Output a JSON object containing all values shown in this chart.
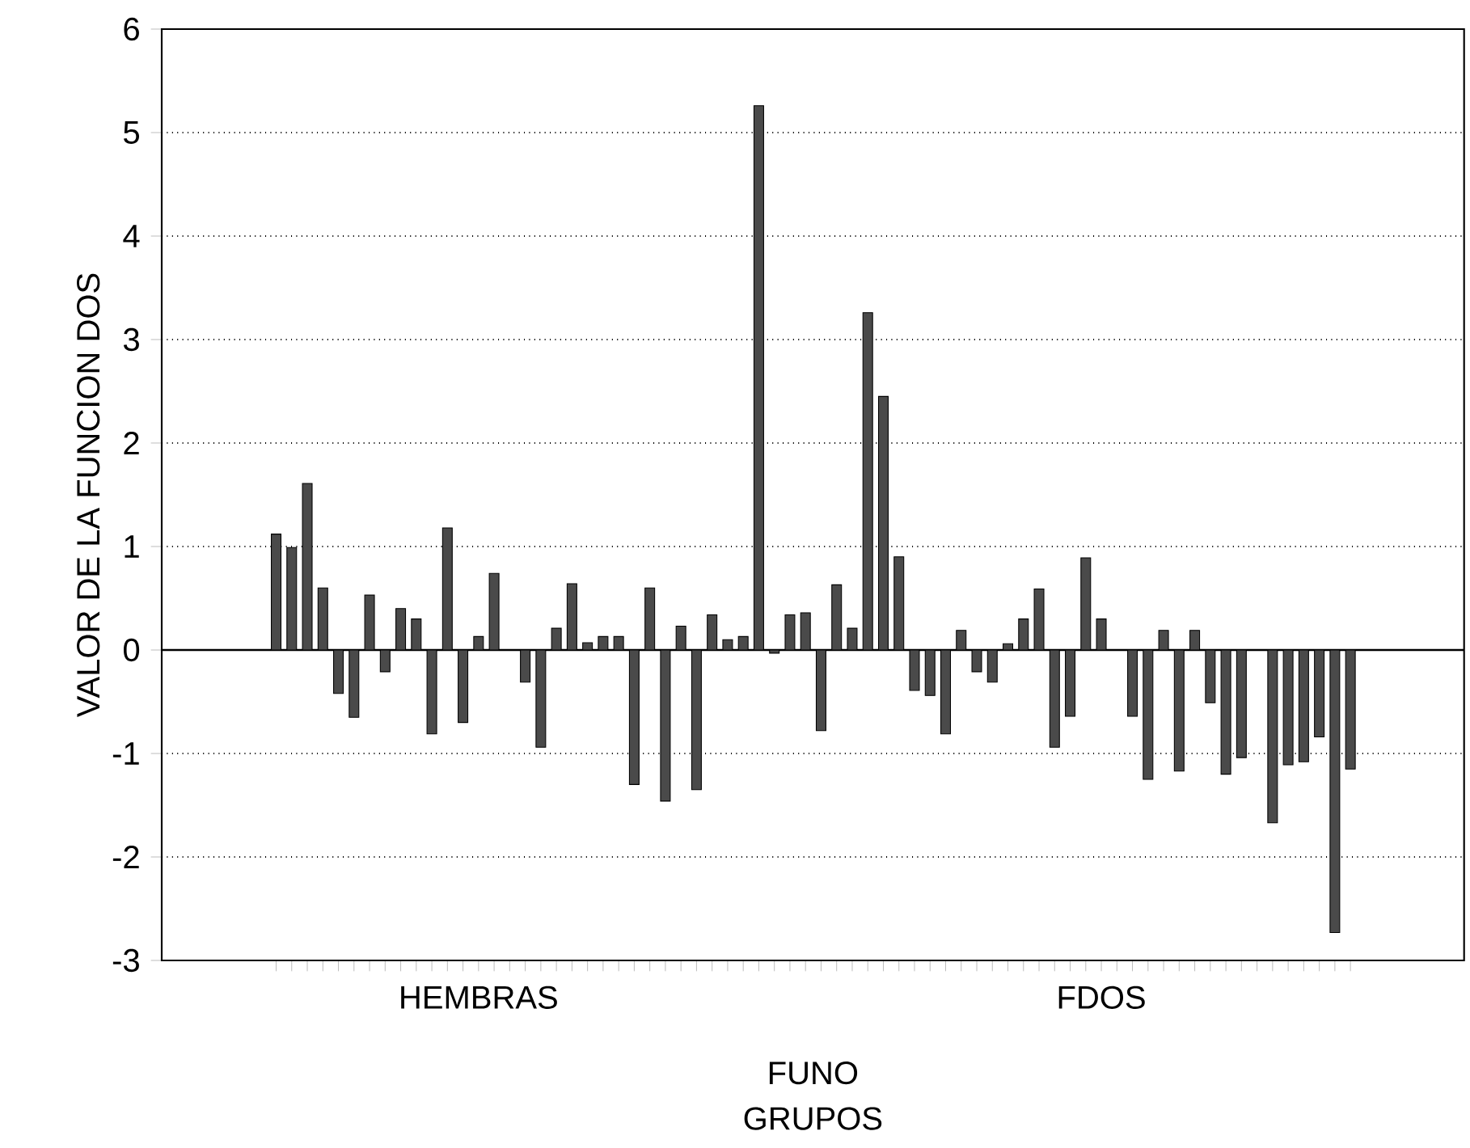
{
  "chart_data": {
    "type": "bar",
    "ylabel": "VALOR DE LA FUNCION DOS",
    "xlabel": "GRUPOS",
    "annotations": [
      "FUNO"
    ],
    "categories": [
      null,
      null,
      null,
      null,
      null,
      null,
      null,
      null,
      null,
      null,
      null,
      null,
      null,
      "HEMBRAS",
      null,
      null,
      null,
      null,
      null,
      null,
      null,
      null,
      null,
      null,
      null,
      null,
      null,
      null,
      null,
      null,
      null,
      null,
      null,
      null,
      null,
      null,
      null,
      null,
      null,
      null,
      null,
      null,
      null,
      null,
      null,
      null,
      null,
      null,
      null,
      null,
      null,
      null,
      null,
      "FDOS",
      null,
      null,
      null,
      null,
      null,
      null,
      null,
      null,
      null,
      null,
      null,
      null,
      null,
      null,
      null,
      null
    ],
    "values": [
      1.12,
      0.99,
      1.61,
      0.6,
      -0.42,
      -0.65,
      0.53,
      -0.21,
      0.4,
      0.3,
      -0.81,
      1.18,
      -0.7,
      0.13,
      0.74,
      null,
      -0.31,
      -0.94,
      0.21,
      0.64,
      0.07,
      0.13,
      0.13,
      -1.3,
      0.6,
      -1.46,
      0.23,
      -1.35,
      0.34,
      0.1,
      0.13,
      5.26,
      -0.03,
      0.34,
      0.36,
      -0.78,
      0.63,
      0.21,
      3.26,
      2.45,
      0.9,
      -0.39,
      -0.44,
      -0.81,
      0.19,
      -0.21,
      -0.31,
      0.06,
      0.3,
      0.59,
      -0.94,
      -0.64,
      0.89,
      0.3,
      null,
      -0.64,
      -1.25,
      0.19,
      -1.17,
      0.19,
      -0.51,
      -1.2,
      -1.04,
      null,
      -1.67,
      -1.11,
      -1.08,
      -0.84,
      -2.73,
      -1.15
    ],
    "color": "#4a4a4a",
    "ylim": [
      -3,
      6
    ],
    "yticks": [
      -3,
      -2,
      -1,
      0,
      1,
      2,
      3,
      4,
      5,
      6
    ],
    "grid": "y"
  }
}
